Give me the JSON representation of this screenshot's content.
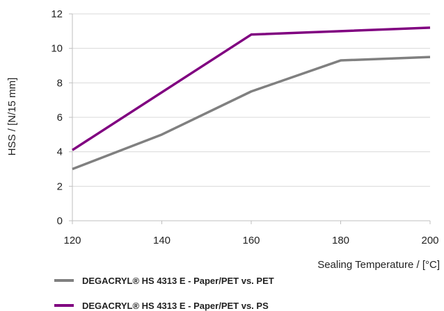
{
  "chart_data": {
    "type": "line",
    "title": "",
    "xlabel": "Sealing Temperature / [°C]",
    "ylabel": "HSS / [N/15 mm]",
    "xlim": [
      120,
      200
    ],
    "ylim": [
      0,
      12
    ],
    "x_ticks": [
      120,
      140,
      160,
      180,
      200
    ],
    "y_ticks": [
      0,
      2,
      4,
      6,
      8,
      10,
      12
    ],
    "grid": "horizontal",
    "legend_position": "bottom",
    "series": [
      {
        "name": "DEGACRYL® HS 4313 E - Paper/PET vs. PET",
        "color": "#808080",
        "x": [
          120,
          140,
          160,
          180,
          200
        ],
        "y": [
          3.0,
          5.0,
          7.5,
          9.3,
          9.5
        ]
      },
      {
        "name": "DEGACRYL® HS 4313 E - Paper/PET vs. PS",
        "color": "#800080",
        "x": [
          120,
          160,
          180,
          200
        ],
        "y": [
          4.1,
          10.8,
          11.0,
          11.2
        ]
      }
    ]
  }
}
